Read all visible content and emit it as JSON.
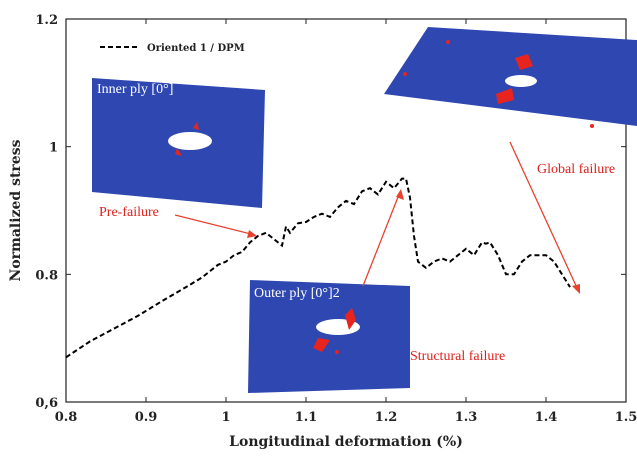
{
  "chart_data": {
    "type": "line",
    "xlabel": "Longitudinal deformation (%)",
    "ylabel": "Normalized stress",
    "xlim": [
      0.8,
      1.5
    ],
    "ylim": [
      0.6,
      1.2
    ],
    "x_ticks": [
      "0.8",
      "0.9",
      "1",
      "1.1",
      "1.2",
      "1.3",
      "1.4",
      "1.5"
    ],
    "y_ticks": [
      "0,6",
      "0.8",
      "1",
      "1.2"
    ],
    "legend": {
      "position": "top-left",
      "entries": [
        "Oriented 1 / DPM"
      ]
    },
    "series": [
      {
        "name": "Oriented 1 / DPM",
        "style": "dashed",
        "color": "#000000",
        "x": [
          0.8,
          0.83,
          0.86,
          0.89,
          0.92,
          0.95,
          0.97,
          0.99,
          1.0,
          1.01,
          1.02,
          1.03,
          1.04,
          1.05,
          1.06,
          1.07,
          1.075,
          1.08,
          1.09,
          1.1,
          1.11,
          1.12,
          1.13,
          1.14,
          1.15,
          1.16,
          1.17,
          1.18,
          1.19,
          1.2,
          1.21,
          1.22,
          1.225,
          1.23,
          1.235,
          1.24,
          1.25,
          1.26,
          1.27,
          1.28,
          1.29,
          1.3,
          1.31,
          1.32,
          1.325,
          1.33,
          1.34,
          1.35,
          1.36,
          1.37,
          1.38,
          1.39,
          1.4,
          1.41,
          1.42,
          1.43
        ],
        "y": [
          0.67,
          0.695,
          0.715,
          0.735,
          0.758,
          0.78,
          0.795,
          0.815,
          0.82,
          0.83,
          0.835,
          0.85,
          0.86,
          0.865,
          0.855,
          0.845,
          0.875,
          0.865,
          0.88,
          0.882,
          0.89,
          0.895,
          0.89,
          0.905,
          0.915,
          0.91,
          0.93,
          0.935,
          0.925,
          0.945,
          0.935,
          0.95,
          0.95,
          0.92,
          0.86,
          0.82,
          0.81,
          0.82,
          0.825,
          0.82,
          0.83,
          0.84,
          0.83,
          0.85,
          0.848,
          0.85,
          0.83,
          0.8,
          0.8,
          0.82,
          0.83,
          0.83,
          0.83,
          0.82,
          0.8,
          0.78
        ]
      }
    ],
    "annotations": [
      {
        "id": "pre",
        "text": "Pre-failure",
        "color": "#e0201b"
      },
      {
        "id": "structural",
        "text": "Structural failure",
        "color": "#e0201b"
      },
      {
        "id": "global",
        "text": "Global failure",
        "color": "#e0201b"
      },
      {
        "id": "inner",
        "text": "Inner ply [0°]",
        "color": "#ffffff"
      },
      {
        "id": "outer",
        "text": "Outer ply [0°]2",
        "color": "#ffffff"
      }
    ],
    "inset_colors": {
      "plate": "#2f47b0",
      "damage": "#e8241e",
      "hole": "#ffffff"
    }
  }
}
